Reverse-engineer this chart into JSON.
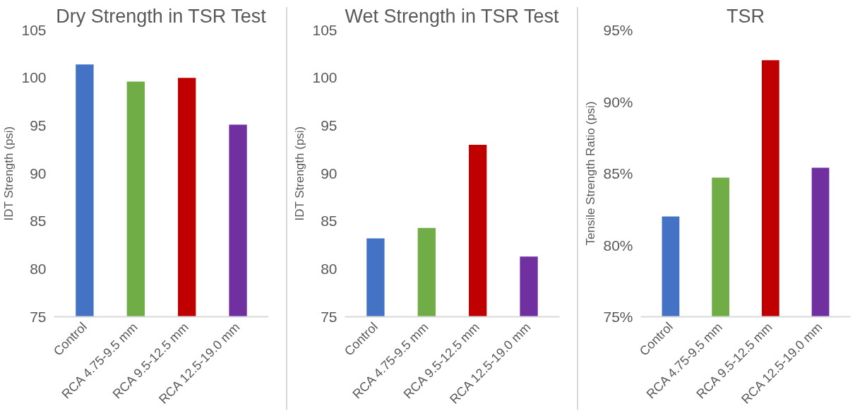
{
  "chart_data": [
    {
      "type": "bar",
      "title": "Dry Strength in TSR Test",
      "ylabel": "IDT Strength (psi)",
      "categories": [
        "Control",
        "RCA 4.75-9.5 mm",
        "RCA 9.5-12.5 mm",
        "RCA 12.5-19.0 mm"
      ],
      "values": [
        101.4,
        99.6,
        100.0,
        95.1
      ],
      "colors": [
        "#4472c4",
        "#70ad47",
        "#c00000",
        "#7030a0"
      ],
      "ylim": [
        75,
        105
      ],
      "yticks": [
        75,
        80,
        85,
        90,
        95,
        100,
        105
      ],
      "grid": false
    },
    {
      "type": "bar",
      "title": "Wet Strength in TSR Test",
      "ylabel": "IDT Strength (psi)",
      "categories": [
        "Control",
        "RCA 4.75-9.5 mm",
        "RCA 9.5-12.5 mm",
        "RCA 12.5-19.0 mm"
      ],
      "values": [
        83.2,
        84.3,
        93.0,
        81.3
      ],
      "colors": [
        "#4472c4",
        "#70ad47",
        "#c00000",
        "#7030a0"
      ],
      "ylim": [
        75,
        105
      ],
      "yticks": [
        75,
        80,
        85,
        90,
        95,
        100,
        105
      ],
      "grid": false
    },
    {
      "type": "bar",
      "title": "TSR",
      "ylabel": "Tensile Strength Ratio (psi)",
      "categories": [
        "Control",
        "RCA 4.75-9.5 mm",
        "RCA 9.5-12.5 mm",
        "RCA 12.5-19.0 mm"
      ],
      "values": [
        82.0,
        84.7,
        92.9,
        85.4
      ],
      "colors": [
        "#4472c4",
        "#70ad47",
        "#c00000",
        "#7030a0"
      ],
      "ylim": [
        75,
        95
      ],
      "yticks": [
        {
          "value": 75,
          "label": "75%"
        },
        {
          "value": 80,
          "label": "80%"
        },
        {
          "value": 85,
          "label": "85%"
        },
        {
          "value": 90,
          "label": "90%"
        },
        {
          "value": 95,
          "label": "95%"
        }
      ],
      "grid": false
    }
  ]
}
